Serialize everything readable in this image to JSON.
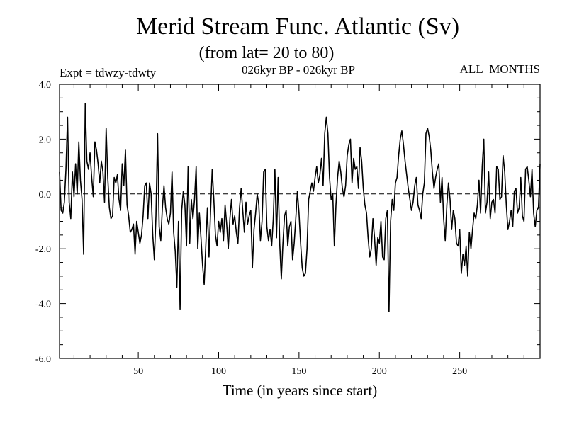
{
  "chart_data": {
    "type": "line",
    "title": "Merid Stream Func. Atlantic (Sv)",
    "subtitle": "(from lat= 20 to 80)",
    "header_left": "Expt = tdwzy-tdwty",
    "header_center": "026kyr BP - 026kyr BP",
    "header_right": "ALL_MONTHS",
    "xlabel": "Time (in years since start)",
    "ylabel": "",
    "xlim": [
      1,
      300
    ],
    "ylim": [
      -6,
      4
    ],
    "x_ticks": [
      50,
      100,
      150,
      200,
      250
    ],
    "x_tick_labels": [
      "50",
      "100",
      "150",
      "200",
      "250"
    ],
    "y_ticks": [
      -6,
      -4,
      -2,
      0,
      2,
      4
    ],
    "y_tick_labels": [
      "-6.0",
      "-4.0",
      "-2.0",
      "0.0",
      "2.0",
      "4.0"
    ],
    "reference_line": {
      "y": 0,
      "style": "dashed"
    },
    "grid": false,
    "series": [
      {
        "x_start": 1,
        "x_step": 1,
        "color": "#000000",
        "values": [
          0.8,
          -0.6,
          -0.7,
          -0.3,
          0.9,
          2.8,
          -0.3,
          -0.9,
          0.8,
          -0.1,
          1.1,
          0.0,
          1.9,
          0.5,
          -0.2,
          -2.2,
          3.3,
          1.2,
          0.9,
          1.5,
          0.6,
          -0.1,
          1.9,
          1.6,
          1.1,
          0.4,
          1.2,
          0.8,
          -0.3,
          2.4,
          0.6,
          -0.5,
          -0.9,
          -0.8,
          0.6,
          0.4,
          0.7,
          -0.2,
          -0.6,
          1.1,
          0.3,
          1.6,
          -0.4,
          -0.8,
          -1.4,
          -1.3,
          -1.1,
          -2.2,
          -1.0,
          -1.4,
          -1.8,
          -1.5,
          -0.8,
          0.3,
          0.4,
          -0.9,
          0.4,
          0.0,
          -1.5,
          -2.4,
          -0.8,
          2.2,
          -1.2,
          -1.7,
          -0.5,
          0.3,
          -0.5,
          -0.9,
          -1.1,
          -0.7,
          0.8,
          -1.4,
          -2.1,
          -3.4,
          -1.0,
          -4.2,
          -0.6,
          0.1,
          -0.4,
          -1.9,
          1.0,
          -1.8,
          -0.2,
          -0.9,
          -0.2,
          1.0,
          -2.0,
          -0.7,
          -1.6,
          -2.6,
          -3.3,
          -1.9,
          -0.5,
          -2.3,
          -0.6,
          0.9,
          -0.2,
          -1.5,
          -1.9,
          -1.0,
          -1.4,
          -0.9,
          -1.7,
          -0.4,
          -1.1,
          -2.0,
          -0.9,
          -0.2,
          -1.1,
          -0.8,
          -1.4,
          -1.8,
          -0.5,
          0.2,
          -0.6,
          -1.4,
          -0.3,
          -1.1,
          -0.8,
          -0.6,
          -2.7,
          -1.3,
          -0.7,
          0.0,
          -0.4,
          -1.7,
          -1.0,
          0.8,
          0.9,
          -1.2,
          -1.7,
          -1.3,
          -1.9,
          -0.9,
          0.9,
          -1.6,
          0.6,
          -1.8,
          -3.1,
          -1.8,
          -0.8,
          -0.6,
          -1.9,
          -1.2,
          -1.0,
          -2.4,
          -1.8,
          -0.9,
          0.1,
          -0.7,
          -1.8,
          -2.7,
          -3.0,
          -2.9,
          -2.0,
          -0.2,
          0.1,
          0.4,
          0.1,
          0.6,
          1.0,
          0.4,
          0.7,
          1.3,
          0.3,
          2.2,
          2.8,
          2.2,
          0.6,
          -0.2,
          0.0,
          -1.9,
          -0.4,
          0.6,
          1.2,
          0.8,
          0.2,
          -0.1,
          0.3,
          1.4,
          1.8,
          2.0,
          0.4,
          1.3,
          0.9,
          1.0,
          0.2,
          1.7,
          1.2,
          0.2,
          -0.4,
          -0.7,
          -1.6,
          -2.3,
          -2.0,
          -0.9,
          -1.6,
          -2.6,
          -1.6,
          -1.8,
          -1.0,
          -2.3,
          -2.4,
          -0.9,
          -0.6,
          -4.3,
          -1.0,
          -0.2,
          -0.6,
          0.4,
          0.6,
          1.4,
          2.0,
          2.3,
          1.8,
          1.2,
          0.7,
          0.2,
          -0.2,
          -0.6,
          -0.3,
          0.3,
          0.6,
          -0.4,
          -0.6,
          -0.9,
          0.0,
          0.4,
          2.2,
          2.4,
          2.1,
          1.6,
          0.8,
          0.2,
          0.6,
          0.9,
          1.1,
          -0.3,
          0.6,
          -0.9,
          -1.7,
          -0.4,
          0.4,
          -0.2,
          -1.3,
          -0.6,
          -0.9,
          -1.8,
          -1.9,
          -1.3,
          -2.9,
          -2.2,
          -2.6,
          -1.9,
          -3.0,
          -1.4,
          -2.0,
          -1.3,
          -0.7,
          -0.9,
          -0.4,
          0.5,
          -0.7,
          1.0,
          2.0,
          -0.7,
          -0.3,
          0.8,
          -0.9,
          -0.3,
          -0.2,
          -0.7,
          1.0,
          0.9,
          -0.2,
          -0.1,
          1.4,
          0.8,
          -0.4,
          -1.3,
          -1.0,
          -0.6,
          -1.2,
          0.1,
          0.2,
          -0.7,
          -0.5,
          0.6,
          -0.8,
          -1.0,
          0.9,
          1.0,
          0.5,
          -0.1,
          0.9,
          -0.7,
          -1.2,
          -0.6,
          -0.5,
          1.1
        ]
      }
    ]
  }
}
